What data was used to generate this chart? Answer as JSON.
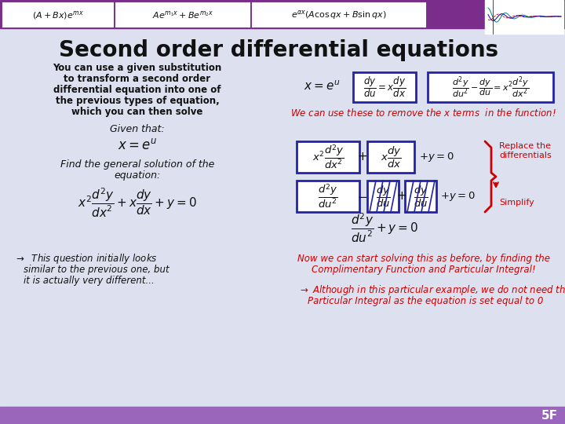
{
  "bg_color": "#dde0ef",
  "header_bg": "#7B2D8B",
  "title": "Second order differential equations",
  "title_color": "#111111",
  "title_fontsize": 20,
  "slide_number": "5F",
  "header_box_color": "#ffffff",
  "header_text_color": "#111111",
  "header_formulas": [
    "$(A + Bx)e^{mx}$",
    "$Ae^{m_1 x} + Be^{m_2 x}$",
    "$e^{\\alpha x}(A\\cos qx + B\\sin qx)$"
  ],
  "left_text_intro": "You can use a given substitution\nto transform a second order\ndifferential equation into one of\nthe previous types of equation,\nwhich you can then solve",
  "right_text_we": "We can use these to remove the $x$ terms  in the function!",
  "right_text_now": "Now we can start solving this as before, by finding the\nComplimentary Function and Particular Integral!",
  "replace_label": "Replace the\ndifferentials",
  "simplify_label": "Simplify",
  "red_color": "#cc0000",
  "blue_color": "#0000cc",
  "box_color": "#2222aa",
  "footer_bg": "#9966bb",
  "text_color": "#111111"
}
